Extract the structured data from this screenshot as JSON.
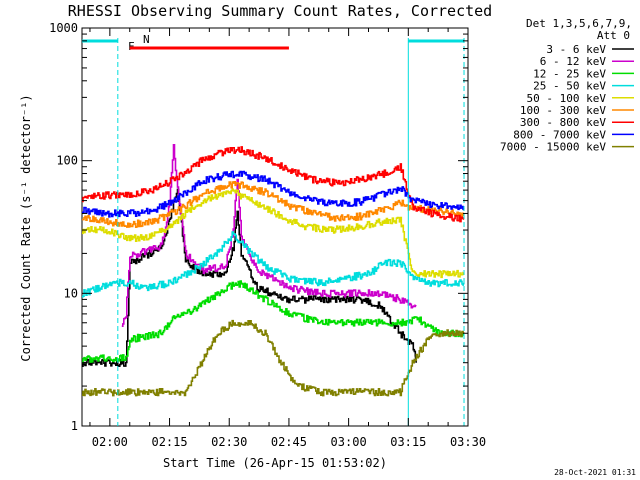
{
  "chart_data": {
    "type": "line",
    "title": "RHESSI Observing Summary Count Rates, Corrected",
    "xlabel": "Start Time (26-Apr-15 01:53:02)",
    "ylabel": "Corrected Count Rate (s⁻¹ detector⁻¹)",
    "y_scale": "log",
    "ylim": [
      1,
      1000
    ],
    "x_range_minutes": [
      0,
      97
    ],
    "x_ticks": [
      {
        "label": "02:00",
        "minutes": 7
      },
      {
        "label": "02:15",
        "minutes": 22
      },
      {
        "label": "02:30",
        "minutes": 37
      },
      {
        "label": "02:45",
        "minutes": 52
      },
      {
        "label": "03:00",
        "minutes": 67
      },
      {
        "label": "03:15",
        "minutes": 82
      },
      {
        "label": "03:30",
        "minutes": 97
      }
    ],
    "y_ticks": [
      {
        "label": "1",
        "value": 1
      },
      {
        "label": "10",
        "value": 10
      },
      {
        "label": "100",
        "value": 100
      },
      {
        "label": "1000",
        "value": 1000
      }
    ],
    "legend_header": [
      "Det 1,3,5,6,7,9,",
      "Att 0"
    ],
    "series": [
      {
        "name": "3 - 6 keV",
        "color": "#000000",
        "points": [
          [
            0,
            3
          ],
          [
            11,
            3
          ],
          [
            12,
            17
          ],
          [
            20,
            22
          ],
          [
            24,
            60
          ],
          [
            26,
            18
          ],
          [
            30,
            14
          ],
          [
            36,
            14
          ],
          [
            38,
            22
          ],
          [
            39,
            40
          ],
          [
            40,
            20
          ],
          [
            44,
            11
          ],
          [
            52,
            9
          ],
          [
            60,
            9
          ],
          [
            70,
            9
          ],
          [
            75,
            8
          ],
          [
            80,
            5
          ],
          [
            83,
            4
          ],
          [
            84,
            3
          ]
        ]
      },
      {
        "name": "6 - 12 keV",
        "color": "#cc00cc",
        "points": [
          [
            10,
            6
          ],
          [
            11,
            7
          ],
          [
            12,
            19
          ],
          [
            20,
            23
          ],
          [
            22,
            48
          ],
          [
            23,
            130
          ],
          [
            24,
            62
          ],
          [
            26,
            20
          ],
          [
            30,
            15
          ],
          [
            36,
            16
          ],
          [
            38,
            30
          ],
          [
            39,
            75
          ],
          [
            40,
            26
          ],
          [
            44,
            15
          ],
          [
            52,
            11
          ],
          [
            60,
            10
          ],
          [
            70,
            10
          ],
          [
            75,
            10
          ],
          [
            80,
            9
          ],
          [
            83,
            8
          ],
          [
            84,
            8
          ]
        ]
      },
      {
        "name": "12 - 25 keV",
        "color": "#00dd00",
        "points": [
          [
            0,
            3.2
          ],
          [
            11,
            3.3
          ],
          [
            12,
            4.5
          ],
          [
            20,
            5
          ],
          [
            23,
            6.5
          ],
          [
            26,
            7
          ],
          [
            32,
            9
          ],
          [
            36,
            11
          ],
          [
            40,
            12
          ],
          [
            46,
            9
          ],
          [
            52,
            7
          ],
          [
            60,
            6
          ],
          [
            70,
            6
          ],
          [
            78,
            6
          ],
          [
            82,
            6
          ],
          [
            84,
            6.5
          ],
          [
            90,
            5
          ],
          [
            96,
            5
          ]
        ]
      },
      {
        "name": "25 - 50 keV",
        "color": "#00dddd",
        "points": [
          [
            0,
            10
          ],
          [
            8,
            12
          ],
          [
            12,
            12
          ],
          [
            16,
            11
          ],
          [
            22,
            12
          ],
          [
            28,
            15
          ],
          [
            34,
            20
          ],
          [
            38,
            28
          ],
          [
            40,
            24
          ],
          [
            46,
            16
          ],
          [
            52,
            13
          ],
          [
            60,
            12
          ],
          [
            66,
            13
          ],
          [
            72,
            14
          ],
          [
            76,
            17
          ],
          [
            80,
            17
          ],
          [
            83,
            13
          ],
          [
            88,
            12
          ],
          [
            96,
            12
          ]
        ]
      },
      {
        "name": "50 - 100 keV",
        "color": "#dddd00",
        "points": [
          [
            0,
            30
          ],
          [
            6,
            30
          ],
          [
            12,
            26
          ],
          [
            18,
            27
          ],
          [
            22,
            32
          ],
          [
            28,
            45
          ],
          [
            34,
            55
          ],
          [
            38,
            58
          ],
          [
            44,
            48
          ],
          [
            50,
            38
          ],
          [
            56,
            32
          ],
          [
            62,
            30
          ],
          [
            68,
            31
          ],
          [
            74,
            34
          ],
          [
            80,
            36
          ],
          [
            83,
            14
          ],
          [
            90,
            14
          ],
          [
            96,
            14
          ]
        ]
      },
      {
        "name": "100 - 300 keV",
        "color": "#ff8800",
        "points": [
          [
            0,
            38
          ],
          [
            6,
            35
          ],
          [
            12,
            33
          ],
          [
            18,
            35
          ],
          [
            24,
            42
          ],
          [
            30,
            55
          ],
          [
            36,
            65
          ],
          [
            40,
            66
          ],
          [
            46,
            58
          ],
          [
            52,
            46
          ],
          [
            58,
            40
          ],
          [
            64,
            37
          ],
          [
            70,
            38
          ],
          [
            76,
            43
          ],
          [
            80,
            48
          ],
          [
            83,
            44
          ],
          [
            88,
            42
          ],
          [
            96,
            40
          ]
        ]
      },
      {
        "name": "300 - 800 keV",
        "color": "#ff0000",
        "points": [
          [
            0,
            52
          ],
          [
            6,
            55
          ],
          [
            12,
            56
          ],
          [
            18,
            60
          ],
          [
            24,
            75
          ],
          [
            30,
            100
          ],
          [
            36,
            118
          ],
          [
            40,
            120
          ],
          [
            46,
            105
          ],
          [
            52,
            85
          ],
          [
            58,
            72
          ],
          [
            64,
            68
          ],
          [
            70,
            72
          ],
          [
            76,
            80
          ],
          [
            80,
            90
          ],
          [
            83,
            45
          ],
          [
            88,
            40
          ],
          [
            96,
            36
          ]
        ]
      },
      {
        "name": "800 - 7000 keV",
        "color": "#0000ff",
        "points": [
          [
            0,
            43
          ],
          [
            6,
            40
          ],
          [
            12,
            40
          ],
          [
            18,
            42
          ],
          [
            24,
            52
          ],
          [
            30,
            70
          ],
          [
            36,
            78
          ],
          [
            40,
            80
          ],
          [
            46,
            72
          ],
          [
            52,
            58
          ],
          [
            58,
            50
          ],
          [
            64,
            47
          ],
          [
            70,
            49
          ],
          [
            76,
            56
          ],
          [
            80,
            62
          ],
          [
            83,
            50
          ],
          [
            88,
            47
          ],
          [
            96,
            44
          ]
        ]
      },
      {
        "name": "7000 - 15000 keV",
        "color": "#808000",
        "points": [
          [
            0,
            1.8
          ],
          [
            11,
            1.8
          ],
          [
            12,
            1.8
          ],
          [
            26,
            1.8
          ],
          [
            30,
            3
          ],
          [
            34,
            5
          ],
          [
            38,
            6
          ],
          [
            42,
            6
          ],
          [
            46,
            5
          ],
          [
            50,
            3
          ],
          [
            54,
            2
          ],
          [
            60,
            1.8
          ],
          [
            70,
            1.8
          ],
          [
            80,
            1.8
          ],
          [
            83,
            3
          ],
          [
            88,
            5
          ],
          [
            96,
            5
          ]
        ]
      }
    ],
    "annotations": {
      "flare_label": "F",
      "night_label": "N",
      "flare_interval_minutes": [
        12,
        52
      ],
      "attenuator_lines_minutes": [
        9,
        82,
        96
      ]
    },
    "footer_text": "28-Oct-2021 01:31"
  }
}
